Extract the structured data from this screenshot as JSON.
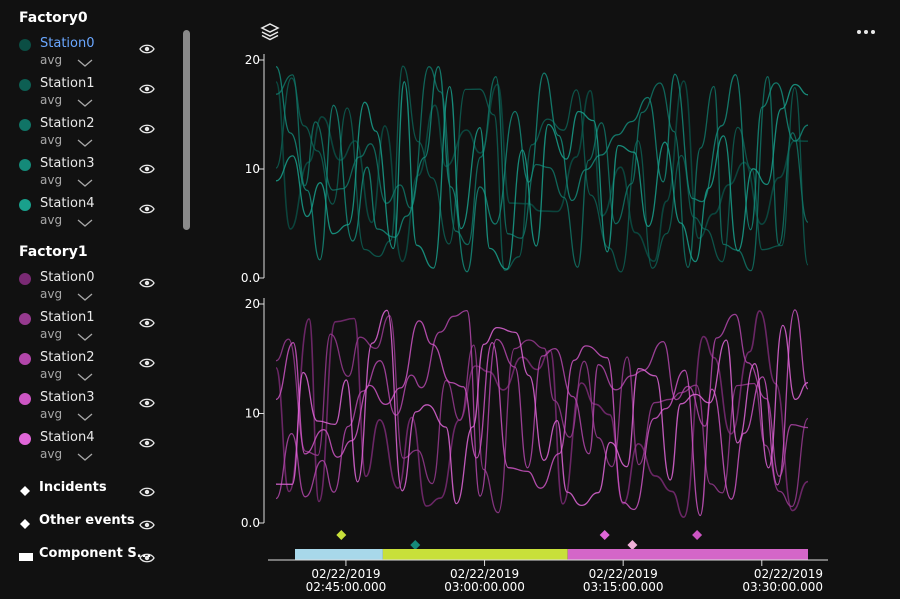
{
  "colors": {
    "background": "#111111",
    "factory0": [
      "#0b4e44",
      "#0d5f53",
      "#107466",
      "#148a79",
      "#19a08c"
    ],
    "factory1": [
      "#7a2a74",
      "#963a8f",
      "#b246aa",
      "#cc55c3",
      "#e066d8"
    ],
    "incident": "#ffffff",
    "other_event": "#ffffff"
  },
  "legend": {
    "groups": [
      {
        "title": "Factory0",
        "series": [
          {
            "name": "Station0",
            "agg": "avg",
            "active": true
          },
          {
            "name": "Station1",
            "agg": "avg"
          },
          {
            "name": "Station2",
            "agg": "avg"
          },
          {
            "name": "Station3",
            "agg": "avg"
          },
          {
            "name": "Station4",
            "agg": "avg"
          }
        ]
      },
      {
        "title": "Factory1",
        "series": [
          {
            "name": "Station0",
            "agg": "avg"
          },
          {
            "name": "Station1",
            "agg": "avg"
          },
          {
            "name": "Station2",
            "agg": "avg"
          },
          {
            "name": "Station3",
            "agg": "avg"
          },
          {
            "name": "Station4",
            "agg": "avg"
          }
        ]
      }
    ],
    "events": [
      {
        "label": "Incidents",
        "glyph": "diamond"
      },
      {
        "label": "Other events",
        "glyph": "diamond"
      },
      {
        "label": "Component S...",
        "glyph": "rect"
      }
    ],
    "eye_icon": "eye-icon"
  },
  "toolbar": {
    "stack_icon": "layers-icon",
    "more_icon": "ellipsis-icon"
  },
  "chart_data": {
    "type": "line",
    "panels": [
      {
        "group": "Factory0",
        "y_ticks": [
          "20",
          "10",
          "0.0"
        ],
        "ylim": [
          0,
          20
        ]
      },
      {
        "group": "Factory1",
        "y_ticks": [
          "20",
          "10",
          "0.0"
        ],
        "ylim": [
          0,
          20
        ]
      }
    ],
    "series_count_per_panel": 5,
    "x_ticks": [
      {
        "date": "02/22/2019",
        "time": "02:45:00.000"
      },
      {
        "date": "02/22/2019",
        "time": "03:00:00.000"
      },
      {
        "date": "02/22/2019",
        "time": "03:15:00.000"
      },
      {
        "date": "02/22/2019",
        "time": "03:30:00.000"
      }
    ],
    "xlim_minutes_after_0245": [
      -8,
      50
    ],
    "events": [
      {
        "time": "02:44:30",
        "color": "#c8e03a"
      },
      {
        "time": "02:52:30",
        "color": "#148a79"
      },
      {
        "time": "03:13:00",
        "color": "#e066d8"
      },
      {
        "time": "03:16:00",
        "color": "#f0b0d8"
      },
      {
        "time": "03:23:00",
        "color": "#cc55c3"
      }
    ],
    "state_segments": [
      {
        "from": "02:37:00",
        "to": "02:49:00",
        "color": "#a8d8ea"
      },
      {
        "from": "02:49:00",
        "to": "03:09:00",
        "color": "#c8e03a"
      },
      {
        "from": "03:09:00",
        "to": "03:35:00",
        "color": "#d466c8"
      }
    ]
  }
}
